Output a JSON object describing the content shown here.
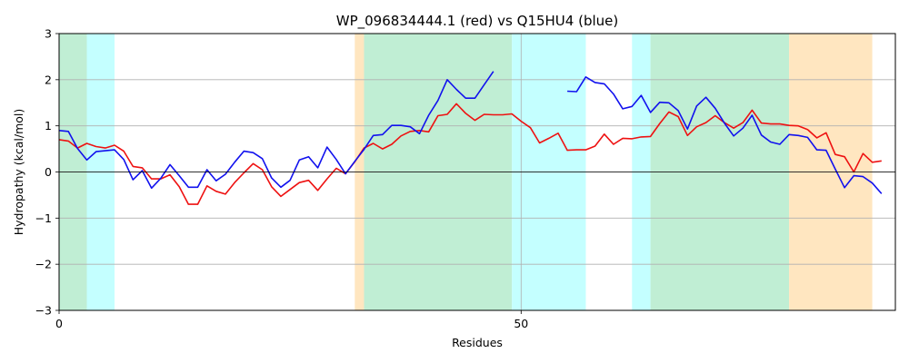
{
  "chart_data": {
    "type": "line",
    "title": "WP_096834444.1 (red) vs Q15HU4 (blue)",
    "xlabel": "Residues",
    "ylabel": "Hydropathy (kcal/mol)",
    "xlim": [
      0,
      90.5
    ],
    "ylim": [
      -3,
      3
    ],
    "xticks": [
      0,
      50
    ],
    "yticks": [
      -3,
      -2,
      -1,
      0,
      1,
      2,
      3
    ],
    "grid": true,
    "legend": "none",
    "regions": [
      {
        "start": 0,
        "end": 3,
        "color": "#c0eed4"
      },
      {
        "start": 3,
        "end": 6,
        "color": "#c4ffff"
      },
      {
        "start": 32,
        "end": 33,
        "color": "#ffe6c0"
      },
      {
        "start": 33,
        "end": 49,
        "color": "#c0eed4"
      },
      {
        "start": 49,
        "end": 57,
        "color": "#c4ffff"
      },
      {
        "start": 62,
        "end": 64,
        "color": "#c4ffff"
      },
      {
        "start": 64,
        "end": 79,
        "color": "#c0eed4"
      },
      {
        "start": 79,
        "end": 88,
        "color": "#ffe6c0"
      }
    ],
    "series": [
      {
        "color": "#ee1111",
        "x_start": 0,
        "values": [
          0.7,
          0.67,
          0.52,
          0.62,
          0.55,
          0.52,
          0.58,
          0.45,
          0.12,
          0.09,
          -0.15,
          -0.15,
          -0.06,
          -0.32,
          -0.7,
          -0.7,
          -0.3,
          -0.42,
          -0.48,
          -0.23,
          -0.02,
          0.18,
          0.05,
          -0.32,
          -0.53,
          -0.38,
          -0.23,
          -0.18,
          -0.4,
          -0.15,
          0.08,
          -0.04,
          0.22,
          0.52,
          0.62,
          0.5,
          0.6,
          0.78,
          0.88,
          0.9,
          0.87,
          1.22,
          1.25,
          1.48,
          1.27,
          1.12,
          1.25,
          1.24,
          1.24,
          1.26,
          1.1,
          0.96,
          0.63,
          0.73,
          0.84,
          0.47,
          0.48,
          0.48,
          0.56,
          0.82,
          0.6,
          0.73,
          0.72,
          0.76,
          0.77,
          1.05,
          1.3,
          1.2,
          0.79,
          0.98,
          1.07,
          1.22,
          1.07,
          0.95,
          1.07,
          1.34,
          1.06,
          1.04,
          1.04,
          1.01,
          1.0,
          0.92,
          0.74,
          0.85,
          0.38,
          0.33,
          0.0,
          0.4,
          0.21,
          0.24
        ]
      },
      {
        "color": "#1111ee",
        "x_start": 0,
        "values": [
          0.9,
          0.88,
          0.51,
          0.26,
          0.44,
          0.46,
          0.48,
          0.27,
          -0.17,
          0.03,
          -0.35,
          -0.14,
          0.16,
          -0.08,
          -0.33,
          -0.33,
          0.05,
          -0.19,
          -0.05,
          0.21,
          0.45,
          0.42,
          0.29,
          -0.13,
          -0.33,
          -0.18,
          0.26,
          0.33,
          0.09,
          0.54,
          0.27,
          -0.04,
          0.23,
          0.49,
          0.79,
          0.81,
          1.01,
          1.01,
          0.98,
          0.83,
          1.23,
          1.55,
          2.0,
          1.79,
          1.6,
          1.6,
          1.89,
          2.18,
          null,
          null,
          null,
          null,
          null,
          null,
          null,
          1.75,
          1.74,
          2.06,
          1.94,
          1.91,
          1.69,
          1.37,
          1.42,
          1.66,
          1.29,
          1.51,
          1.5,
          1.33,
          0.93,
          1.43,
          1.62,
          1.38,
          1.06,
          0.78,
          0.95,
          1.23,
          0.8,
          0.65,
          0.6,
          0.81,
          0.79,
          0.75,
          0.48,
          0.47,
          0.06,
          -0.34,
          -0.08,
          -0.1,
          -0.24,
          -0.47
        ]
      }
    ]
  }
}
